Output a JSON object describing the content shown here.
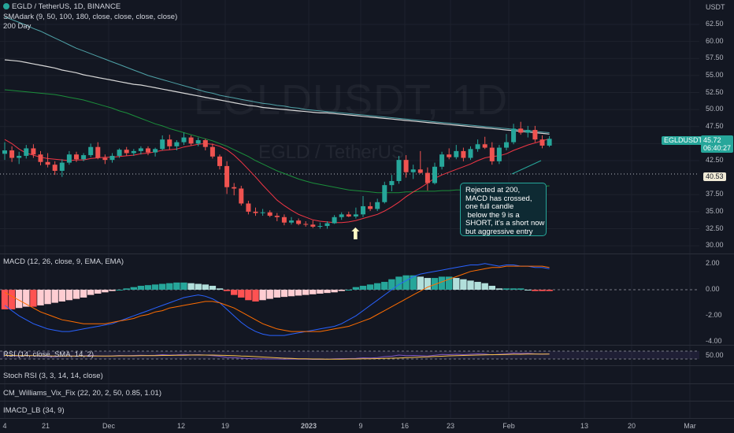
{
  "header": {
    "symbol_line": "EGLD / TetherUS, 1D, BINANCE",
    "sma_line": "SMAdark (9, 50, 100, 180, close, close, close, close)",
    "day_line": "200 Day"
  },
  "watermark": {
    "main": "EGLDUSDT, 1D",
    "sub": "EGLD / TetherUS"
  },
  "price_axis": {
    "unit": "USDT",
    "ticks": [
      "62.50",
      "60.00",
      "57.50",
      "55.00",
      "52.50",
      "50.00",
      "47.50",
      "45.00",
      "42.50",
      "37.50",
      "35.00",
      "32.50",
      "30.00"
    ],
    "tick_values": [
      62.5,
      60,
      57.5,
      55,
      52.5,
      50,
      47.5,
      45,
      42.5,
      37.5,
      35,
      32.5,
      30
    ],
    "current_symbol": "EGLDUSDT",
    "current_price": "45.72",
    "countdown": "06:40:27",
    "level_price": "40.53"
  },
  "annotation": {
    "lines": [
      "Rejected at 200,",
      "MACD has crossed,",
      "one full candle",
      " below the 9 is a",
      "SHORT, it's a short now",
      "but aggressive entry"
    ]
  },
  "macd_pane": {
    "label": "MACD (12, 26, close, 9, EMA, EMA)",
    "ticks": [
      "2.00",
      "0.00",
      "-2.00",
      "-4.00"
    ],
    "tick_values": [
      2,
      0,
      -2,
      -4
    ]
  },
  "rsi_pane": {
    "label": "RSI (14, close, SMA, 14, 2)",
    "tick": "50.00"
  },
  "stoch_pane": {
    "label": "Stoch RSI (3, 3, 14, 14, close)"
  },
  "vix_pane": {
    "label": "CM_Williams_Vix_Fix (22, 20, 2, 50, 0.85, 1.01)"
  },
  "imacd_pane": {
    "label": "IMACD_LB (34, 9)"
  },
  "time_axis": {
    "labels": [
      "4",
      "21",
      "Dec",
      "12",
      "19",
      "2023",
      "9",
      "16",
      "23",
      "Feb",
      "13",
      "20",
      "Mar"
    ]
  },
  "colors": {
    "up": "#26a69a",
    "down": "#ef5350",
    "sma9": "#f23645",
    "sma50": "#1b8e3b",
    "sma100": "#4fa3a8",
    "sma200": "#d8d8d8"
  },
  "chart_data": {
    "type": "candlestick",
    "interval": "1D",
    "candles_ohlc": [
      [
        43.5,
        45.2,
        42.6,
        44.0
      ],
      [
        44.0,
        44.6,
        42.3,
        42.9
      ],
      [
        42.9,
        43.8,
        42.0,
        43.2
      ],
      [
        43.2,
        44.8,
        42.8,
        44.3
      ],
      [
        44.3,
        44.9,
        42.9,
        43.4
      ],
      [
        43.4,
        43.9,
        41.8,
        42.3
      ],
      [
        42.3,
        43.6,
        41.5,
        41.9
      ],
      [
        41.9,
        42.4,
        40.4,
        41.0
      ],
      [
        41.0,
        42.7,
        40.1,
        42.2
      ],
      [
        42.2,
        43.9,
        41.9,
        43.4
      ],
      [
        43.4,
        43.8,
        42.3,
        42.7
      ],
      [
        42.7,
        43.6,
        42.4,
        43.3
      ],
      [
        43.3,
        45.0,
        43.0,
        44.5
      ],
      [
        44.5,
        45.2,
        42.7,
        42.9
      ],
      [
        42.9,
        43.4,
        42.0,
        42.6
      ],
      [
        42.6,
        43.6,
        42.2,
        43.2
      ],
      [
        43.2,
        44.3,
        42.9,
        44.1
      ],
      [
        44.1,
        44.5,
        43.2,
        43.6
      ],
      [
        43.6,
        44.2,
        43.2,
        43.9
      ],
      [
        43.9,
        44.6,
        43.4,
        44.3
      ],
      [
        44.3,
        44.6,
        43.3,
        43.7
      ],
      [
        43.7,
        44.4,
        43.1,
        44.2
      ],
      [
        44.2,
        46.2,
        44.0,
        45.6
      ],
      [
        45.6,
        46.3,
        44.1,
        44.6
      ],
      [
        44.6,
        45.5,
        44.0,
        45.2
      ],
      [
        45.2,
        46.6,
        44.8,
        45.9
      ],
      [
        45.9,
        46.2,
        44.7,
        45.0
      ],
      [
        45.0,
        45.9,
        44.6,
        45.5
      ],
      [
        45.5,
        45.7,
        44.0,
        44.5
      ],
      [
        44.5,
        45.0,
        42.8,
        43.1
      ],
      [
        43.1,
        43.4,
        41.2,
        41.7
      ],
      [
        41.7,
        42.4,
        37.6,
        38.6
      ],
      [
        38.6,
        39.2,
        37.4,
        38.4
      ],
      [
        38.4,
        38.8,
        35.9,
        36.2
      ],
      [
        36.2,
        36.6,
        34.6,
        35.0
      ],
      [
        35.0,
        35.6,
        34.4,
        34.8
      ],
      [
        34.8,
        35.4,
        34.4,
        34.9
      ],
      [
        34.9,
        35.2,
        34.2,
        34.4
      ],
      [
        34.4,
        34.8,
        33.6,
        34.2
      ],
      [
        34.2,
        34.6,
        33.0,
        33.4
      ],
      [
        33.4,
        34.2,
        33.1,
        33.7
      ],
      [
        33.7,
        34.0,
        33.0,
        33.2
      ],
      [
        33.2,
        33.6,
        32.8,
        33.1
      ],
      [
        33.1,
        33.7,
        32.6,
        32.8
      ],
      [
        32.8,
        33.4,
        32.5,
        32.9
      ],
      [
        32.9,
        33.6,
        32.5,
        33.3
      ],
      [
        33.3,
        34.5,
        33.2,
        34.2
      ],
      [
        34.2,
        34.9,
        33.8,
        34.6
      ],
      [
        34.6,
        35.0,
        34.2,
        34.3
      ],
      [
        34.3,
        35.6,
        34.0,
        34.6
      ],
      [
        34.6,
        37.3,
        34.2,
        35.8
      ],
      [
        35.8,
        36.4,
        35.1,
        35.4
      ],
      [
        35.4,
        36.9,
        35.1,
        36.4
      ],
      [
        36.4,
        39.4,
        36.2,
        38.9
      ],
      [
        38.9,
        40.4,
        38.0,
        39.5
      ],
      [
        39.5,
        43.2,
        39.1,
        42.6
      ],
      [
        42.6,
        43.3,
        40.0,
        40.8
      ],
      [
        40.8,
        41.9,
        39.8,
        41.2
      ],
      [
        41.2,
        43.9,
        40.6,
        40.7
      ],
      [
        40.7,
        41.5,
        38.1,
        39.2
      ],
      [
        39.2,
        42.2,
        39.0,
        41.6
      ],
      [
        41.6,
        43.8,
        41.2,
        43.4
      ],
      [
        43.4,
        44.3,
        42.7,
        43.0
      ],
      [
        43.0,
        44.8,
        42.7,
        43.9
      ],
      [
        43.9,
        44.4,
        42.4,
        42.9
      ],
      [
        42.9,
        44.6,
        42.6,
        44.2
      ],
      [
        44.2,
        45.6,
        43.8,
        44.9
      ],
      [
        44.9,
        46.0,
        44.2,
        44.4
      ],
      [
        44.4,
        45.2,
        41.9,
        42.4
      ],
      [
        42.4,
        44.8,
        42.0,
        44.4
      ],
      [
        44.4,
        46.4,
        44.0,
        45.2
      ],
      [
        45.2,
        47.9,
        44.9,
        47.2
      ],
      [
        47.2,
        48.2,
        46.3,
        46.6
      ],
      [
        46.6,
        47.6,
        45.9,
        47.0
      ],
      [
        47.0,
        47.6,
        45.2,
        45.6
      ],
      [
        45.6,
        46.2,
        44.3,
        44.7
      ],
      [
        44.7,
        46.1,
        44.5,
        45.7
      ]
    ],
    "sma9": [
      45.6,
      45.0,
      44.2,
      43.6,
      43.3,
      43.0,
      42.8,
      42.7,
      42.6,
      42.5,
      42.6,
      42.6,
      42.8,
      42.9,
      43.0,
      43.0,
      43.1,
      43.2,
      43.3,
      43.5,
      43.6,
      43.8,
      44.0,
      44.1,
      44.2,
      44.5,
      44.7,
      44.9,
      45.0,
      44.9,
      44.6,
      44.1,
      43.3,
      42.3,
      41.2,
      40.1,
      38.9,
      37.8,
      36.7,
      35.9,
      35.2,
      34.6,
      34.2,
      33.8,
      33.6,
      33.5,
      33.4,
      33.4,
      33.5,
      33.7,
      34.0,
      34.3,
      34.6,
      35.1,
      35.7,
      36.4,
      37.2,
      37.9,
      38.5,
      39.2,
      39.9,
      40.4,
      40.8,
      41.2,
      41.6,
      42.0,
      42.5,
      42.9,
      43.1,
      43.2,
      43.5,
      44.0,
      44.4,
      44.8,
      45.1,
      45.4,
      45.7
    ],
    "sma50": [
      52.9,
      52.8,
      52.7,
      52.6,
      52.5,
      52.4,
      52.3,
      52.2,
      52.0,
      51.8,
      51.6,
      51.4,
      51.1,
      50.8,
      50.5,
      50.2,
      49.8,
      49.5,
      49.1,
      48.7,
      48.3,
      47.9,
      47.6,
      47.2,
      46.9,
      46.6,
      46.3,
      46.0,
      45.7,
      45.4,
      45.0,
      44.6,
      44.1,
      43.6,
      43.1,
      42.5,
      42.0,
      41.5,
      41.0,
      40.6,
      40.2,
      39.8,
      39.5,
      39.2,
      39.0,
      38.8,
      38.6,
      38.4,
      38.2,
      38.1,
      38.0,
      37.9,
      37.8,
      37.8,
      37.8,
      37.8,
      37.9,
      37.9,
      38.0,
      38.0,
      38.0,
      38.1,
      38.1,
      38.2,
      38.2,
      38.3,
      38.3,
      38.4,
      38.4,
      38.5,
      38.5,
      38.6,
      38.6,
      38.6,
      38.7,
      38.7,
      38.8
    ],
    "sma100": [
      63.6,
      63.2,
      62.8,
      62.4,
      61.9,
      61.5,
      61.0,
      60.5,
      60.0,
      59.5,
      59.0,
      58.6,
      58.2,
      57.8,
      57.4,
      57.0,
      56.6,
      56.2,
      55.8,
      55.4,
      55.0,
      54.7,
      54.4,
      54.1,
      53.8,
      53.5,
      53.2,
      52.9,
      52.6,
      52.4,
      52.1,
      51.9,
      51.7,
      51.5,
      51.3,
      51.1,
      50.9,
      50.8,
      50.6,
      50.5,
      50.3,
      50.2,
      50.0,
      49.9,
      49.8,
      49.7,
      49.6,
      49.5,
      49.4,
      49.3,
      49.2,
      49.1,
      49.0,
      48.9,
      48.8,
      48.7,
      48.6,
      48.5,
      48.4,
      48.3,
      48.2,
      48.1,
      48.0,
      47.9,
      47.8,
      47.7,
      47.6,
      47.5,
      47.4,
      47.3,
      47.2,
      47.1,
      47.0,
      46.9,
      46.8,
      46.7,
      46.6
    ],
    "sma200": [
      57.3,
      57.2,
      57.1,
      56.9,
      56.7,
      56.5,
      56.3,
      56.1,
      55.8,
      55.6,
      55.4,
      55.1,
      54.9,
      54.7,
      54.5,
      54.3,
      54.1,
      53.9,
      53.7,
      53.6,
      53.4,
      53.2,
      53.0,
      52.8,
      52.6,
      52.4,
      52.2,
      52.0,
      51.8,
      51.6,
      51.4,
      51.2,
      51.0,
      50.8,
      50.6,
      50.5,
      50.3,
      50.2,
      50.1,
      50.0,
      49.9,
      49.8,
      49.7,
      49.6,
      49.5,
      49.5,
      49.4,
      49.3,
      49.2,
      49.1,
      49.0,
      48.9,
      48.8,
      48.7,
      48.6,
      48.5,
      48.4,
      48.3,
      48.2,
      48.1,
      48.0,
      47.9,
      47.8,
      47.7,
      47.6,
      47.5,
      47.4,
      47.3,
      47.2,
      47.1,
      47.0,
      46.9,
      46.8,
      46.7,
      46.6,
      46.5,
      46.4
    ],
    "macd_hist": [
      -1.5,
      -1.5,
      -1.4,
      -1.3,
      -1.3,
      -1.2,
      -1.1,
      -1.0,
      -0.9,
      -0.8,
      -0.7,
      -0.6,
      -0.4,
      -0.3,
      -0.2,
      -0.1,
      0.0,
      0.1,
      0.2,
      0.3,
      0.35,
      0.4,
      0.45,
      0.5,
      0.55,
      0.55,
      0.5,
      0.45,
      0.4,
      0.3,
      0.1,
      -0.1,
      -0.4,
      -0.6,
      -0.8,
      -0.9,
      -0.8,
      -0.7,
      -0.6,
      -0.55,
      -0.5,
      -0.45,
      -0.4,
      -0.35,
      -0.3,
      -0.25,
      -0.2,
      -0.1,
      0.0,
      0.2,
      0.3,
      0.4,
      0.5,
      0.6,
      0.8,
      1.0,
      1.1,
      1.1,
      1.0,
      0.9,
      0.9,
      1.0,
      1.0,
      0.9,
      0.8,
      0.7,
      0.6,
      0.5,
      0.3,
      0.1,
      0.1,
      0.1,
      0.1,
      0.0,
      -0.1,
      -0.1,
      -0.1
    ],
    "macd_line": [
      -1.2,
      -1.6,
      -2.0,
      -2.3,
      -2.6,
      -2.8,
      -3.0,
      -3.1,
      -3.2,
      -3.2,
      -3.1,
      -3.0,
      -2.9,
      -2.8,
      -2.7,
      -2.6,
      -2.4,
      -2.2,
      -2.0,
      -1.8,
      -1.6,
      -1.4,
      -1.2,
      -1.0,
      -0.8,
      -0.6,
      -0.5,
      -0.4,
      -0.5,
      -0.7,
      -1.0,
      -1.5,
      -2.0,
      -2.5,
      -2.9,
      -3.2,
      -3.4,
      -3.5,
      -3.5,
      -3.5,
      -3.4,
      -3.3,
      -3.2,
      -3.1,
      -3.0,
      -2.9,
      -2.8,
      -2.6,
      -2.3,
      -2.0,
      -1.6,
      -1.2,
      -0.8,
      -0.4,
      0.0,
      0.4,
      0.7,
      1.0,
      1.2,
      1.3,
      1.4,
      1.5,
      1.6,
      1.7,
      1.8,
      1.9,
      1.9,
      2.0,
      1.9,
      1.8,
      1.9,
      1.9,
      1.8,
      1.8,
      1.7,
      1.7,
      1.6
    ],
    "macd_signal": [
      -0.2,
      -0.5,
      -0.8,
      -1.1,
      -1.4,
      -1.7,
      -1.9,
      -2.1,
      -2.3,
      -2.4,
      -2.5,
      -2.6,
      -2.6,
      -2.6,
      -2.6,
      -2.5,
      -2.4,
      -2.3,
      -2.2,
      -2.0,
      -1.9,
      -1.7,
      -1.6,
      -1.4,
      -1.3,
      -1.2,
      -1.1,
      -1.0,
      -0.9,
      -0.9,
      -1.0,
      -1.2,
      -1.4,
      -1.7,
      -2.0,
      -2.3,
      -2.6,
      -2.8,
      -3.0,
      -3.1,
      -3.2,
      -3.2,
      -3.2,
      -3.2,
      -3.2,
      -3.1,
      -3.0,
      -2.9,
      -2.8,
      -2.6,
      -2.4,
      -2.2,
      -1.9,
      -1.6,
      -1.3,
      -1.0,
      -0.7,
      -0.4,
      -0.1,
      0.2,
      0.4,
      0.6,
      0.8,
      1.0,
      1.2,
      1.4,
      1.5,
      1.6,
      1.7,
      1.7,
      1.8,
      1.8,
      1.8,
      1.8,
      1.8,
      1.8,
      1.7
    ],
    "rsi": [
      48,
      46,
      45,
      47,
      46,
      44,
      43,
      42,
      44,
      46,
      45,
      46,
      48,
      46,
      45,
      46,
      48,
      47,
      48,
      49,
      48,
      49,
      52,
      50,
      51,
      53,
      51,
      52,
      50,
      47,
      44,
      38,
      37,
      34,
      32,
      31,
      31,
      30,
      30,
      29,
      30,
      29,
      29,
      28,
      28,
      29,
      31,
      32,
      32,
      33,
      36,
      35,
      37,
      42,
      44,
      50,
      47,
      48,
      47,
      45,
      49,
      53,
      52,
      54,
      52,
      54,
      56,
      55,
      51,
      54,
      56,
      60,
      58,
      59,
      56,
      54,
      56
    ],
    "rsi_ma": [
      48,
      48,
      47,
      47,
      47,
      46,
      46,
      45,
      45,
      45,
      45,
      45,
      45,
      45,
      45,
      45,
      46,
      46,
      46,
      47,
      47,
      47,
      48,
      48,
      49,
      49,
      50,
      50,
      50,
      50,
      49,
      48,
      47,
      45,
      44,
      42,
      40,
      38,
      36,
      34,
      33,
      31,
      31,
      30,
      30,
      29,
      29,
      29,
      30,
      30,
      31,
      31,
      32,
      33,
      34,
      35,
      37,
      38,
      40,
      41,
      43,
      44,
      46,
      47,
      48,
      49,
      50,
      51,
      52,
      52,
      53,
      54,
      54,
      55,
      55,
      55,
      55
    ]
  }
}
